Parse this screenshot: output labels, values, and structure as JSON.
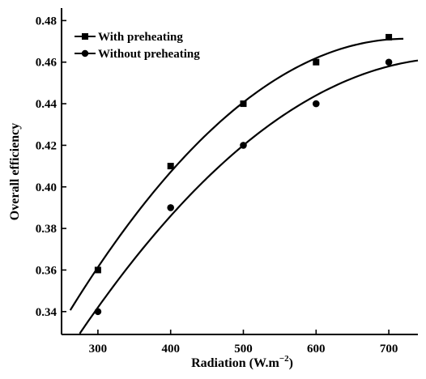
{
  "chart_data": {
    "type": "scatter",
    "xlabel": "Radiation (W.m",
    "xlabel_superscript": "−2",
    "xlabel_close": ")",
    "ylabel": "Overall efficiency",
    "xlim": [
      250,
      740
    ],
    "ylim": [
      0.329,
      0.486
    ],
    "x_ticks": [
      300,
      400,
      500,
      600,
      700
    ],
    "y_ticks": [
      0.34,
      0.36,
      0.38,
      0.4,
      0.42,
      0.44,
      0.46,
      0.48
    ],
    "x_tick_labels": [
      "300",
      "400",
      "500",
      "600",
      "700"
    ],
    "y_tick_labels": [
      "0.34",
      "0.36",
      "0.38",
      "0.40",
      "0.42",
      "0.44",
      "0.46",
      "0.48"
    ],
    "grid": false,
    "legend_position": "top-left",
    "series": [
      {
        "name": "With preheating",
        "marker": "square",
        "x": [
          300,
          400,
          500,
          600,
          700
        ],
        "y": [
          0.36,
          0.41,
          0.44,
          0.46,
          0.472
        ],
        "fit": {
          "type": "quadratic",
          "x_range": [
            262,
            720
          ]
        }
      },
      {
        "name": "Without preheating",
        "marker": "circle",
        "x": [
          300,
          400,
          500,
          600,
          700
        ],
        "y": [
          0.34,
          0.39,
          0.42,
          0.44,
          0.46
        ],
        "fit": {
          "type": "quadratic",
          "x_range": [
            275,
            740
          ]
        }
      }
    ],
    "colors": {
      "ink": "#000000",
      "background": "#ffffff"
    }
  }
}
